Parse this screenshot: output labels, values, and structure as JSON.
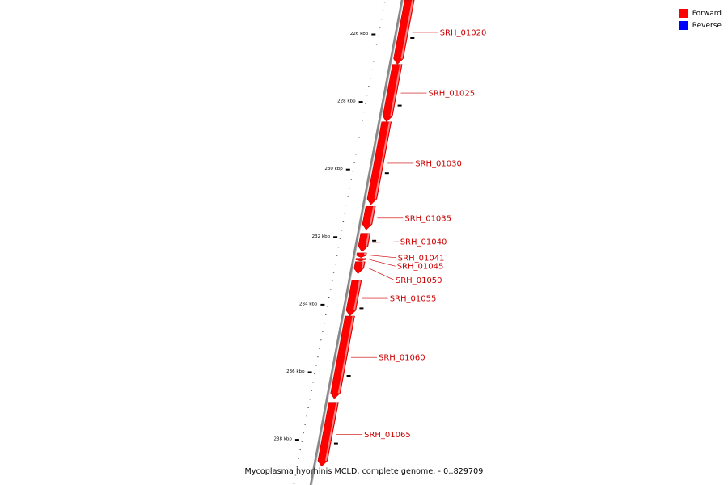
{
  "legend": {
    "items": [
      {
        "label": "Forward",
        "color": "#ff0000"
      },
      {
        "label": "Reverse",
        "color": "#0000ff"
      }
    ]
  },
  "caption": "Mycoplasma hyorhinis MCLD, complete genome. - 0..829709",
  "colors": {
    "forward": "#ff0000",
    "forward_light": "#ff8080",
    "backbone": "#888888",
    "label": "#cc0000"
  },
  "scale_marks": [
    {
      "position_kbp": 226,
      "label": "226 kbp"
    },
    {
      "position_kbp": 228,
      "label": "228 kbp"
    },
    {
      "position_kbp": 230,
      "label": "230 kbp"
    },
    {
      "position_kbp": 232,
      "label": "232 kbp"
    },
    {
      "position_kbp": 234,
      "label": "234 kbp"
    },
    {
      "position_kbp": 236,
      "label": "236 kbp"
    },
    {
      "position_kbp": 238,
      "label": "238 kbp"
    }
  ],
  "genes": [
    {
      "id": "SRH_01020",
      "start_kbp": 225.0,
      "end_kbp": 226.9,
      "strand": "forward"
    },
    {
      "id": "SRH_01025",
      "start_kbp": 226.9,
      "end_kbp": 228.6,
      "strand": "forward"
    },
    {
      "id": "SRH_01030",
      "start_kbp": 228.6,
      "end_kbp": 231.05,
      "strand": "forward"
    },
    {
      "id": "SRH_01035",
      "start_kbp": 231.1,
      "end_kbp": 231.8,
      "strand": "forward"
    },
    {
      "id": "SRH_01040",
      "start_kbp": 231.9,
      "end_kbp": 232.45,
      "strand": "forward"
    },
    {
      "id": "SRH_01041",
      "start_kbp": 232.48,
      "end_kbp": 232.62,
      "strand": "forward"
    },
    {
      "id": "SRH_01045",
      "start_kbp": 232.64,
      "end_kbp": 232.72,
      "strand": "forward"
    },
    {
      "id": "SRH_01050",
      "start_kbp": 232.74,
      "end_kbp": 233.1,
      "strand": "forward"
    },
    {
      "id": "SRH_01055",
      "start_kbp": 233.3,
      "end_kbp": 234.35,
      "strand": "forward"
    },
    {
      "id": "SRH_01060",
      "start_kbp": 234.35,
      "end_kbp": 236.8,
      "strand": "forward"
    },
    {
      "id": "SRH_01065",
      "start_kbp": 236.9,
      "end_kbp": 238.8,
      "strand": "forward"
    }
  ]
}
